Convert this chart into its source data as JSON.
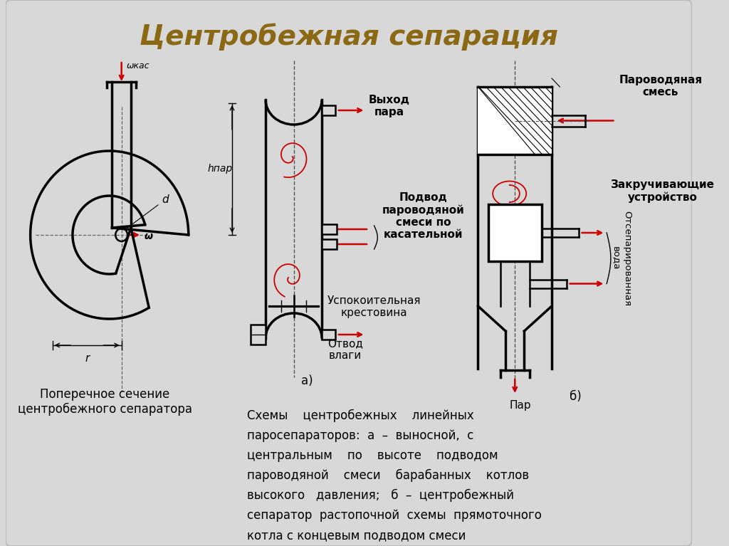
{
  "title": "Центробежная сепарация",
  "title_color": "#8B6914",
  "bg_color": "#D8D8D8",
  "line_color": "#000000",
  "red_color": "#CC0000",
  "text_bottom": "Схемы    центробежных    линейных\nпаросепараторов:  а  –  выносной,  с\nцентральным    по    высоте    подводом\nпароводяной    смеси    барабанных    котлов\nвысокого   давления;   б  –  центробежный\nсепаратор  растопочной  схемы  прямоточного\nкотла с концевым подводом смеси",
  "label_cross": "Поперечное сечение\nцентробежного сепаратора",
  "label_vyhod": "Выход\nпара",
  "label_podvod": "Подвод\nпароводяной\nсмеси по\nкасательной",
  "label_uspokoitelnaya": "Успокоительная\nкрестовина",
  "label_otvod": "Отвод\nвлаги",
  "label_a": "а)",
  "label_b": "б)",
  "label_par": "Пар",
  "label_parovodnaya": "Пароводяная\nсмесь",
  "label_zakruchivayuschie": "Закручивающие\nустройство",
  "label_otseparir": "Отсепарированная\nвода",
  "label_hpar": "hпар",
  "label_omega_kas": "ωкас",
  "label_omega": "ω",
  "label_d": "d",
  "label_r": "r"
}
